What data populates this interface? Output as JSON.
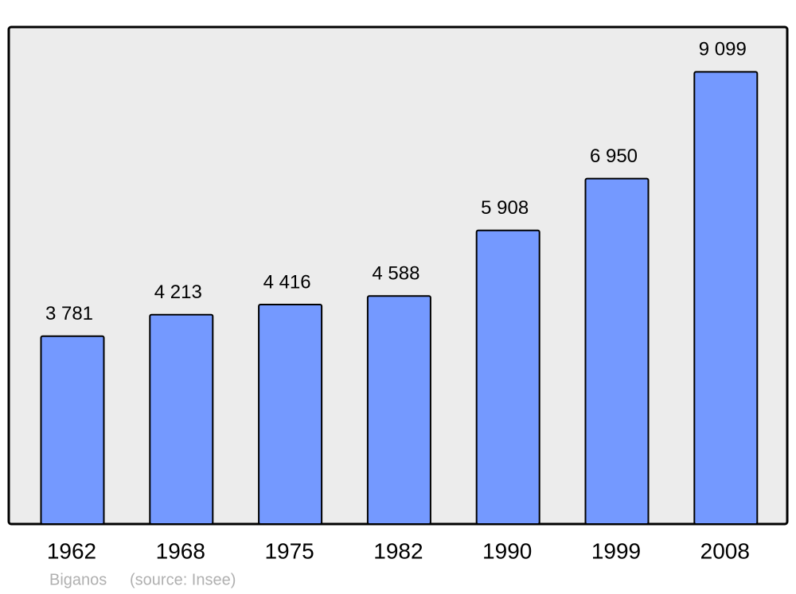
{
  "chart_data": {
    "type": "bar",
    "categories": [
      "1962",
      "1968",
      "1975",
      "1982",
      "1990",
      "1999",
      "2008"
    ],
    "values": [
      3781,
      4213,
      4416,
      4588,
      5908,
      6950,
      9099
    ],
    "value_labels": [
      "3 781",
      "4 213",
      "4 416",
      "4 588",
      "5 908",
      "6 950",
      "9 099"
    ],
    "color": "#7499ff",
    "ylim": [
      0,
      10000
    ],
    "caption": "Biganos",
    "source": "(source: Insee)"
  }
}
